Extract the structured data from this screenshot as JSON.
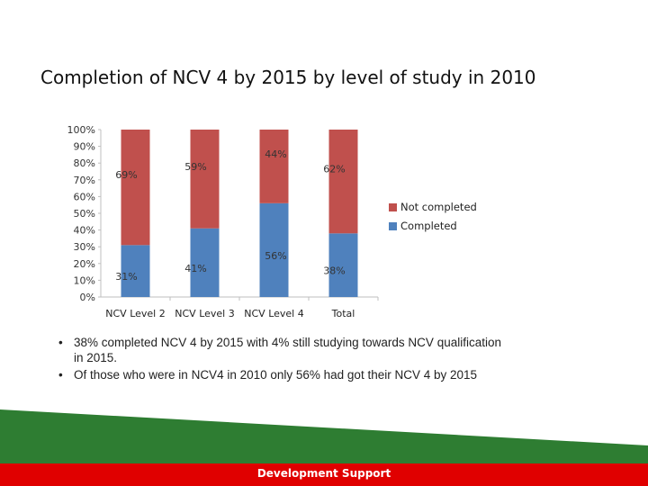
{
  "title": "Completion of NCV 4 by 2015 by level of study in 2010",
  "chart_data": {
    "type": "bar",
    "stacked": true,
    "categories": [
      "NCV Level 2",
      "NCV Level 3",
      "NCV Level 4",
      "Total"
    ],
    "series": [
      {
        "name": "Completed",
        "values": [
          31,
          41,
          56,
          38
        ],
        "labels": [
          "31%",
          "41%",
          "56%",
          "38%"
        ],
        "color": "#4f81bd"
      },
      {
        "name": "Not completed",
        "values": [
          69,
          59,
          44,
          62
        ],
        "labels": [
          "69%",
          "59%",
          "44%",
          "62%"
        ],
        "color": "#c0504d"
      }
    ],
    "y_ticks": [
      "0%",
      "10%",
      "20%",
      "30%",
      "40%",
      "50%",
      "60%",
      "70%",
      "80%",
      "90%",
      "100%"
    ],
    "ylim": [
      0,
      100
    ],
    "legend_position": "right",
    "grid": false
  },
  "bullets": [
    "38% completed NCV 4 by 2015 with 4% still studying towards NCV qualification in 2015.",
    " Of those who were in NCV4 in 2010 only 56% had got their NCV 4 by 2015"
  ],
  "footer": {
    "label": "Development Support",
    "green": "#2e7d32",
    "red": "#e00000"
  }
}
